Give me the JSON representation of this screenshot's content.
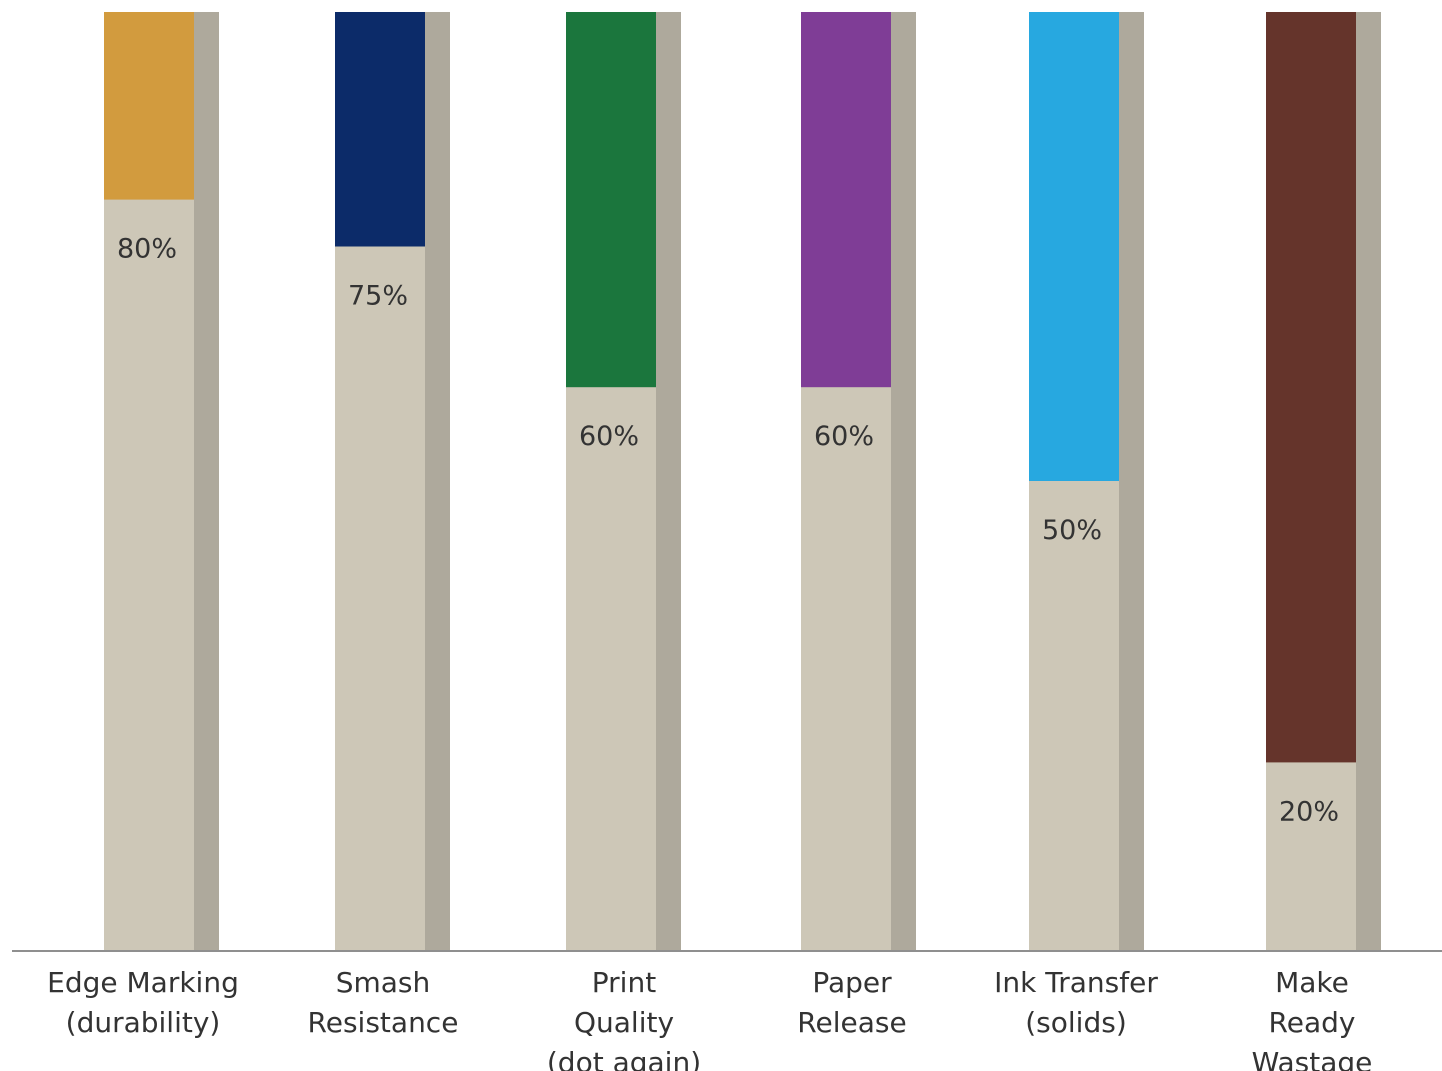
{
  "chart_data": {
    "type": "bar",
    "title": "",
    "xlabel": "",
    "ylabel": "",
    "ylim": [
      0,
      100
    ],
    "categories": [
      [
        "Edge Marking",
        "(durability)"
      ],
      [
        "Smash",
        "Resistance"
      ],
      [
        "Print",
        "Quality",
        "(dot again)"
      ],
      [
        "Paper",
        "Release"
      ],
      [
        "Ink Transfer",
        "(solids)"
      ],
      [
        "Make",
        "Ready",
        "Wastage"
      ]
    ],
    "values": [
      80,
      75,
      60,
      60,
      50,
      20
    ],
    "value_labels": [
      "80%",
      "75%",
      "60%",
      "60%",
      "50%",
      "20%"
    ],
    "colors": [
      "#d29b3e",
      "#0c2b69",
      "#1b763d",
      "#7f3d96",
      "#27a8e0",
      "#65342b"
    ],
    "base_color": "#cdc7b7",
    "shadow_color": "#aea99c",
    "axis_color": "#8f8f8f"
  }
}
